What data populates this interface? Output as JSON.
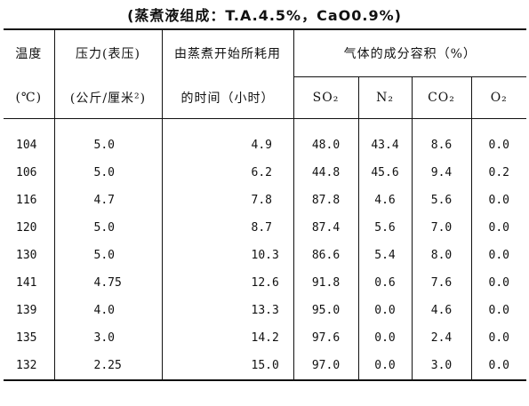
{
  "caption": "(蒸煮液组成：T.A.4.5%，CaO0.9%)",
  "headers": {
    "temp_line1": "温度",
    "temp_line2": "(℃)",
    "pressure_line1": "压力(表压)",
    "pressure_line2": "(公斤/厘米²)",
    "time_line1": "由蒸煮开始所耗用",
    "time_line2": "的时间（小时）",
    "gas_group": "气体的成分容积（%）",
    "so2": "SO₂",
    "n2": "N₂",
    "co2": "CO₂",
    "o2": "O₂"
  },
  "rows": [
    {
      "temp": "104",
      "pressure": "5.0",
      "time": "4.9",
      "so2": "48.0",
      "n2": "43.4",
      "co2": "8.6",
      "o2": "0.0"
    },
    {
      "temp": "106",
      "pressure": "5.0",
      "time": "6.2",
      "so2": "44.8",
      "n2": "45.6",
      "co2": "9.4",
      "o2": "0.2"
    },
    {
      "temp": "116",
      "pressure": "4.7",
      "time": "7.8",
      "so2": "87.8",
      "n2": "4.6",
      "co2": "5.6",
      "o2": "0.0"
    },
    {
      "temp": "120",
      "pressure": "5.0",
      "time": "8.7",
      "so2": "87.4",
      "n2": "5.6",
      "co2": "7.0",
      "o2": "0.0"
    },
    {
      "temp": "130",
      "pressure": "5.0",
      "time": "10.3",
      "so2": "86.6",
      "n2": "5.4",
      "co2": "8.0",
      "o2": "0.0"
    },
    {
      "temp": "141",
      "pressure": "4.75",
      "time": "12.6",
      "so2": "91.8",
      "n2": "0.6",
      "co2": "7.6",
      "o2": "0.0"
    },
    {
      "temp": "139",
      "pressure": "4.0",
      "time": "13.3",
      "so2": "95.0",
      "n2": "0.0",
      "co2": "4.6",
      "o2": "0.0"
    },
    {
      "temp": "135",
      "pressure": "3.0",
      "time": "14.2",
      "so2": "97.6",
      "n2": "0.0",
      "co2": "2.4",
      "o2": "0.0"
    },
    {
      "temp": "132",
      "pressure": "2.25",
      "time": "15.0",
      "so2": "97.0",
      "n2": "0.0",
      "co2": "3.0",
      "o2": "0.0"
    }
  ]
}
